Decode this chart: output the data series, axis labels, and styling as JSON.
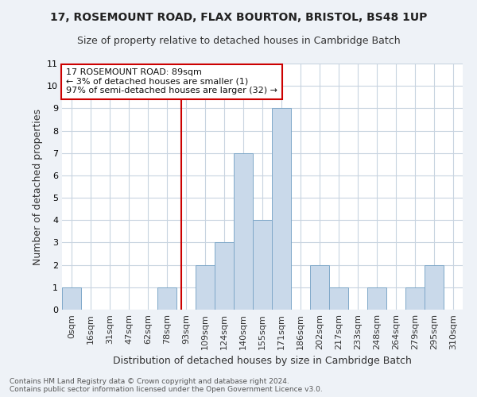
{
  "title": "17, ROSEMOUNT ROAD, FLAX BOURTON, BRISTOL, BS48 1UP",
  "subtitle": "Size of property relative to detached houses in Cambridge Batch",
  "xlabel": "Distribution of detached houses by size in Cambridge Batch",
  "ylabel": "Number of detached properties",
  "footer_line1": "Contains HM Land Registry data © Crown copyright and database right 2024.",
  "footer_line2": "Contains public sector information licensed under the Open Government Licence v3.0.",
  "bin_labels": [
    "0sqm",
    "16sqm",
    "31sqm",
    "47sqm",
    "62sqm",
    "78sqm",
    "93sqm",
    "109sqm",
    "124sqm",
    "140sqm",
    "155sqm",
    "171sqm",
    "186sqm",
    "202sqm",
    "217sqm",
    "233sqm",
    "248sqm",
    "264sqm",
    "279sqm",
    "295sqm",
    "310sqm"
  ],
  "bar_values": [
    1,
    0,
    0,
    0,
    0,
    1,
    0,
    2,
    3,
    7,
    4,
    9,
    0,
    2,
    1,
    0,
    1,
    0,
    1,
    2,
    0
  ],
  "bar_color": "#c9d9ea",
  "bar_edge_color": "#7fa8c9",
  "vline_color": "#cc0000",
  "ylim_max": 11,
  "annotation_title": "17 ROSEMOUNT ROAD: 89sqm",
  "annotation_line1": "← 3% of detached houses are smaller (1)",
  "annotation_line2": "97% of semi-detached houses are larger (32) →",
  "bg_color": "#eef2f7",
  "plot_bg_color": "#ffffff",
  "grid_color": "#c8d4e0",
  "title_fontsize": 10,
  "subtitle_fontsize": 9,
  "tick_fontsize": 8,
  "ylabel_fontsize": 9,
  "xlabel_fontsize": 9,
  "annot_fontsize": 8,
  "footer_fontsize": 6.5
}
